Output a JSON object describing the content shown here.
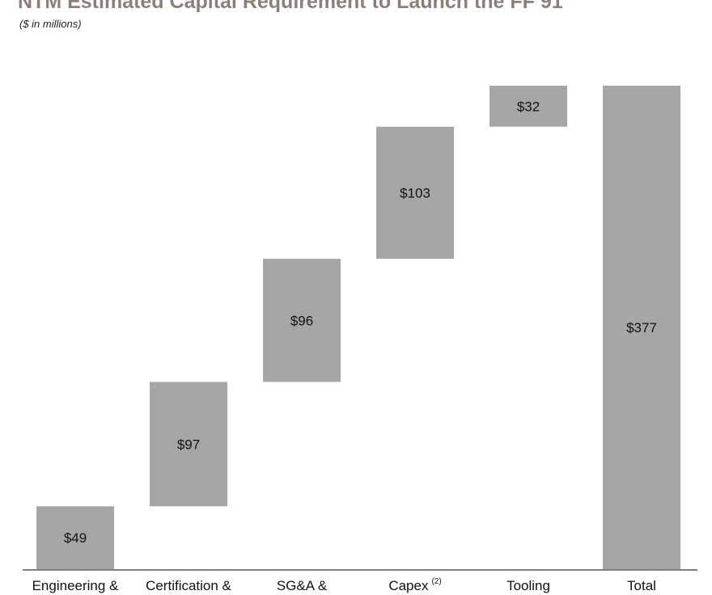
{
  "chart_data": {
    "type": "bar",
    "subtype": "waterfall",
    "title": "NTM Estimated Capital Requirement to Launch the FF 91",
    "subtitle": "($ in millions)",
    "categories": [
      "Engineering &",
      "Certification &",
      "SG&A &",
      "Capex",
      "Tooling",
      "Total"
    ],
    "category_superscripts": [
      "",
      "",
      "",
      "(2)",
      "",
      ""
    ],
    "values": [
      49,
      97,
      96,
      103,
      32,
      377
    ],
    "data_labels": [
      "$49",
      "$97",
      "$96",
      "$103",
      "$32",
      "$377"
    ],
    "is_total": [
      false,
      false,
      false,
      false,
      false,
      true
    ],
    "ylim": [
      0,
      377
    ],
    "xlabel": "",
    "ylabel": "",
    "grid": false,
    "bar_color": "#a6a6a6",
    "axis_color": "#7f7f7f"
  }
}
